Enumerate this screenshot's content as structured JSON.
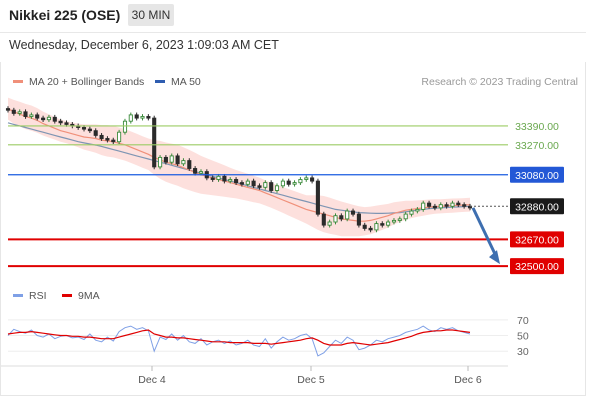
{
  "header": {
    "title": "Nikkei 225 (OSE)",
    "timeframe": "30 MIN",
    "datetime": "Wednesday, December 6, 2023 1:09:03 AM CET"
  },
  "legend": {
    "ma20_label": "MA 20 + Bollinger Bands",
    "ma50_label": "MA 50",
    "credit": "Research © 2023 Trading Central",
    "rsi_label": "RSI",
    "rsi9_label": "9MA"
  },
  "colors": {
    "price": "#333333",
    "candle_up": "#3a8a3a",
    "candle_down": "#2b2b2b",
    "ma20": "#f0907a",
    "bollinger_fill": "#fcd5d2",
    "ma50": "#7e95b3",
    "support": "#e00000",
    "resistance_green": "#9ccc65",
    "resistance_blue": "#1a5be0",
    "current_price_bg": "#1a1a1a",
    "arrow": "#3e6fb0",
    "rsi": "#7fa0e6",
    "rsi9": "#e00000"
  },
  "chart_data": {
    "type": "line",
    "title": "Nikkei 225 (OSE)",
    "timeframe": "30 MIN",
    "x_tick_labels": [
      "Dec 4",
      "Dec 5",
      "Dec 6"
    ],
    "price_ylim": [
      32450,
      33580
    ],
    "levels": [
      {
        "value": 33390.0,
        "label": "33390.00",
        "kind": "resistance"
      },
      {
        "value": 33270.0,
        "label": "33270.00",
        "kind": "resistance"
      },
      {
        "value": 33080.0,
        "label": "33080.00",
        "kind": "pivot"
      },
      {
        "value": 32880.0,
        "label": "32880.00",
        "kind": "last"
      },
      {
        "value": 32670.0,
        "label": "32670.00",
        "kind": "support"
      },
      {
        "value": 32500.0,
        "label": "32500.00",
        "kind": "support"
      }
    ],
    "price_series": [
      33490,
      33470,
      33480,
      33450,
      33460,
      33440,
      33430,
      33445,
      33420,
      33410,
      33400,
      33390,
      33380,
      33370,
      33360,
      33330,
      33310,
      33300,
      33290,
      33350,
      33420,
      33460,
      33440,
      33450,
      33440,
      33130,
      33190,
      33160,
      33200,
      33150,
      33170,
      33120,
      33090,
      33100,
      33060,
      33050,
      33070,
      33040,
      33050,
      33030,
      33020,
      33040,
      33010,
      33000,
      33030,
      32980,
      33010,
      33040,
      33020,
      33030,
      33050,
      33060,
      33040,
      32830,
      32760,
      32780,
      32820,
      32800,
      32850,
      32830,
      32760,
      32740,
      32730,
      32770,
      32760,
      32780,
      32790,
      32800,
      32830,
      32850,
      32860,
      32900,
      32880,
      32870,
      32890,
      32880,
      32900,
      32890,
      32880,
      32870
    ],
    "ma20_series": [
      33500,
      33480,
      33465,
      33450,
      33440,
      33425,
      33405,
      33390,
      33375,
      33360,
      33350,
      33340,
      33330,
      33320,
      33315,
      33310,
      33300,
      33295,
      33290,
      33280,
      33270,
      33255,
      33240,
      33225,
      33210,
      33190,
      33175,
      33160,
      33150,
      33140,
      33125,
      33110,
      33095,
      33080,
      33070,
      33060,
      33050,
      33040,
      33030,
      33020,
      33010,
      33000,
      32990,
      32980,
      32965,
      32950,
      32935,
      32920,
      32905,
      32890,
      32875,
      32860,
      32850,
      32840,
      32830,
      32820,
      32810,
      32800,
      32795,
      32790,
      32785,
      32785,
      32790,
      32800,
      32810,
      32820,
      32835,
      32845,
      32855,
      32860,
      32865,
      32870,
      32875,
      32878,
      32880,
      32882,
      32884,
      32886,
      32888,
      32890
    ],
    "bb_width": [
      70,
      75,
      78,
      80,
      80,
      78,
      76,
      74,
      72,
      70,
      70,
      72,
      75,
      80,
      85,
      90,
      95,
      100,
      100,
      100,
      100,
      100,
      100,
      100,
      100,
      110,
      120,
      125,
      128,
      130,
      130,
      128,
      125,
      120,
      115,
      110,
      105,
      100,
      95,
      90,
      88,
      86,
      84,
      82,
      80,
      80,
      80,
      82,
      84,
      86,
      88,
      90,
      100,
      110,
      115,
      115,
      112,
      110,
      105,
      100,
      95,
      90,
      88,
      84,
      80,
      75,
      70,
      65,
      60,
      55,
      52,
      50,
      48,
      46,
      45,
      45,
      45,
      44,
      44,
      44
    ],
    "ma50_series": [
      33410,
      33400,
      33390,
      33380,
      33370,
      33360,
      33350,
      33340,
      33330,
      33320,
      33310,
      33300,
      33290,
      33282,
      33275,
      33268,
      33260,
      33250,
      33240,
      33230,
      33220,
      33210,
      33200,
      33190,
      33180,
      33170,
      33160,
      33150,
      33140,
      33130,
      33120,
      33110,
      33100,
      33090,
      33080,
      33070,
      33060,
      33050,
      33040,
      33030,
      33020,
      33010,
      33000,
      32990,
      32980,
      32970,
      32960,
      32950,
      32940,
      32930,
      32920,
      32910,
      32900,
      32890,
      32880,
      32870,
      32860,
      32855,
      32850,
      32845,
      32840,
      32838,
      32836,
      32835,
      32835,
      32836,
      32838,
      32840,
      32845,
      32850,
      32855,
      32860,
      32865,
      32868,
      32870,
      32872,
      32874,
      32876,
      32878,
      32880
    ],
    "rsi_ylim": [
      15,
      80
    ],
    "rsi_ticks": [
      70,
      50,
      30
    ],
    "rsi_series": [
      50,
      58,
      55,
      53,
      57,
      50,
      48,
      52,
      46,
      49,
      50,
      47,
      48,
      45,
      52,
      44,
      42,
      48,
      43,
      55,
      60,
      62,
      58,
      60,
      56,
      30,
      48,
      45,
      52,
      44,
      50,
      42,
      40,
      46,
      38,
      42,
      44,
      40,
      43,
      38,
      40,
      44,
      38,
      36,
      46,
      34,
      42,
      48,
      44,
      46,
      50,
      52,
      46,
      24,
      28,
      36,
      44,
      40,
      48,
      44,
      32,
      34,
      38,
      44,
      42,
      46,
      48,
      50,
      54,
      56,
      58,
      62,
      57,
      55,
      60,
      58,
      60,
      56,
      54,
      52
    ],
    "rsi9_series": [
      52,
      53,
      54,
      54,
      55,
      54,
      53,
      52,
      51,
      50,
      50,
      49,
      49,
      48,
      48,
      47,
      46,
      46,
      46,
      48,
      50,
      52,
      54,
      56,
      57,
      52,
      50,
      48,
      48,
      47,
      47,
      46,
      45,
      44,
      43,
      42,
      42,
      42,
      41,
      41,
      41,
      41,
      40,
      40,
      40,
      39,
      40,
      41,
      42,
      43,
      44,
      46,
      47,
      44,
      40,
      38,
      38,
      38,
      40,
      41,
      40,
      39,
      38,
      39,
      40,
      41,
      43,
      45,
      47,
      49,
      52,
      54,
      55,
      56,
      56,
      57,
      57,
      56,
      55,
      54
    ]
  }
}
